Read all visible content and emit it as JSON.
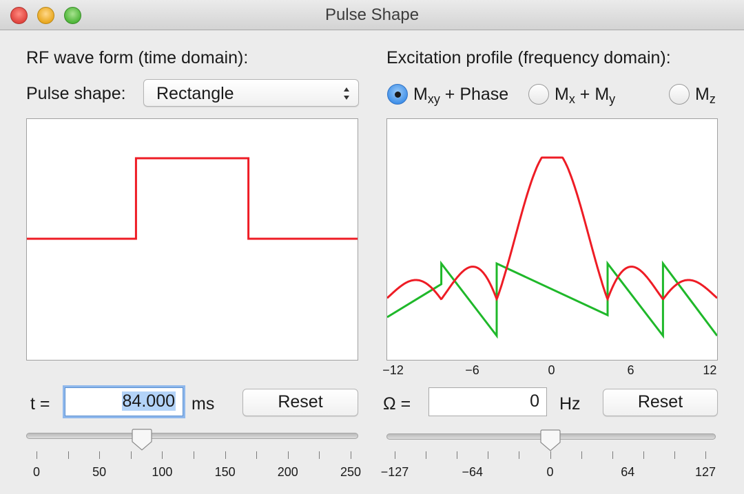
{
  "window": {
    "title": "Pulse Shape"
  },
  "left": {
    "heading": "RF wave form (time domain):",
    "pulse_shape_label": "Pulse shape:",
    "pulse_shape_value": "Rectangle",
    "t_label": "t =",
    "t_value": "84.000",
    "t_unit": "ms",
    "reset_label": "Reset",
    "slider": {
      "min": 0,
      "max": 250,
      "value": 84,
      "labels": [
        "0",
        "50",
        "100",
        "150",
        "200",
        "250"
      ]
    }
  },
  "right": {
    "heading": "Excitation profile (frequency domain):",
    "radios": [
      {
        "main": "M",
        "sub": "xy",
        "suffix": " + Phase",
        "checked": true
      },
      {
        "main": "M",
        "sub": "x",
        "suffix": " + M",
        "sub2": "y",
        "checked": false
      },
      {
        "main": "M",
        "sub": "z",
        "suffix": "",
        "checked": false
      }
    ],
    "omega_label": "Ω =",
    "omega_value": "0",
    "omega_unit": "Hz",
    "reset_label": "Reset",
    "slider": {
      "min": -127,
      "max": 127,
      "value": 0,
      "labels": [
        "−127",
        "−64",
        "0",
        "64",
        "127"
      ]
    }
  },
  "colors": {
    "magnitude": "#ee1c25",
    "phase": "#1fb82a"
  },
  "chart_data": [
    {
      "type": "line",
      "title": "",
      "series": [
        {
          "points": [
            [
              0,
              0
            ],
            [
              0.33,
              0
            ],
            [
              0.33,
              1
            ],
            [
              0.67,
              1
            ],
            [
              0.67,
              0
            ],
            [
              1,
              0
            ]
          ]
        }
      ]
    },
    {
      "type": "line",
      "title": "",
      "x_tick_labels": [
        "−12",
        "−6",
        "0",
        "6",
        "12"
      ],
      "xlim": [
        -12.5,
        12.5
      ],
      "series": [
        {
          "name": "magnitude",
          "function": "abs_sinc",
          "zeros_spacing": 4.2,
          "peak": 1.0
        },
        {
          "name": "phase",
          "function": "sawtooth"
        }
      ]
    }
  ]
}
